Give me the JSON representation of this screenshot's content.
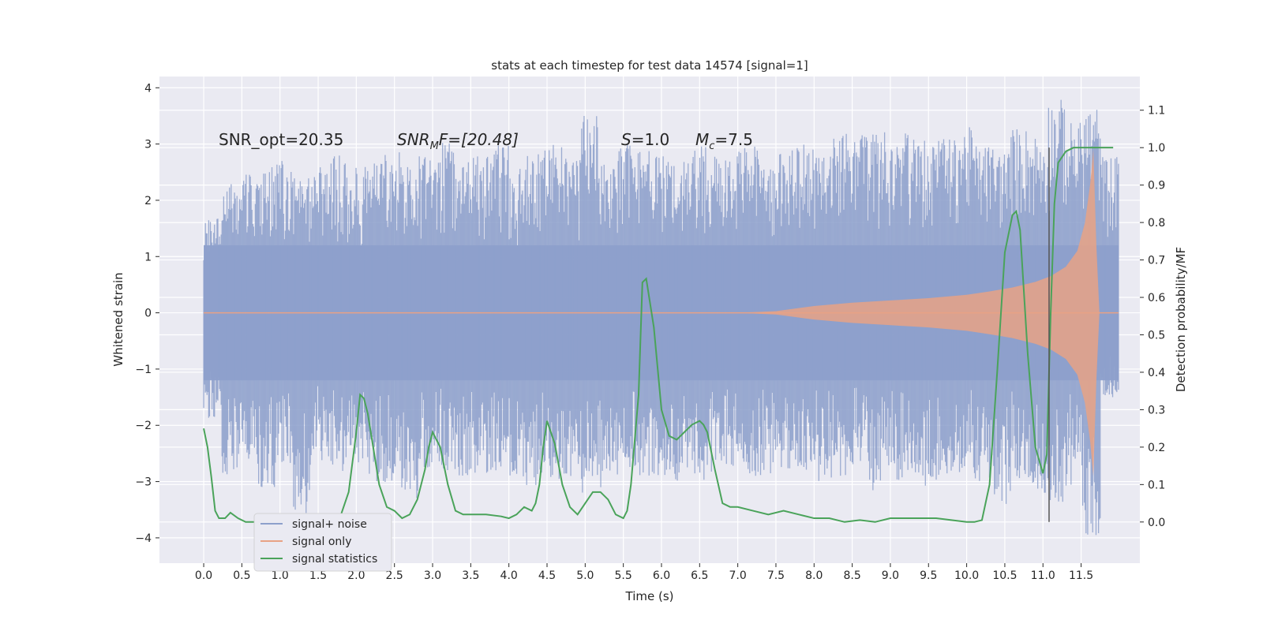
{
  "chart_data": {
    "type": "line",
    "title": "stats at each timestep for test data 14574 [signal=1]",
    "xlabel": "Time (s)",
    "ylabel": "Whitened strain",
    "y2label": "Detection probability/MF",
    "xlim": [
      -0.58,
      12.27
    ],
    "ylim": [
      -4.45,
      4.2
    ],
    "y2lim": [
      -0.11,
      1.19
    ],
    "x_ticks": [
      "0.0",
      "0.5",
      "1.0",
      "1.5",
      "2.0",
      "2.5",
      "3.0",
      "3.5",
      "4.0",
      "4.5",
      "5.0",
      "5.5",
      "6.0",
      "6.5",
      "7.0",
      "7.5",
      "8.0",
      "8.5",
      "9.0",
      "9.5",
      "10.0",
      "10.5",
      "11.0",
      "11.5"
    ],
    "y_ticks": [
      "4",
      "3",
      "2",
      "1",
      "0",
      "−1",
      "−2",
      "−3",
      "−4"
    ],
    "y2_ticks": [
      "1.1",
      "1.0",
      "0.9",
      "0.8",
      "0.7",
      "0.6",
      "0.5",
      "0.4",
      "0.3",
      "0.2",
      "0.1",
      "0.0"
    ],
    "grid": true,
    "annotations": [
      {
        "text": "SNR_opt=20.35",
        "x": 0.2,
        "y": 3.0
      },
      {
        "text": "F=[20.48]",
        "var": "SNR",
        "sub": "M",
        "x": 2.6,
        "y": 3.0
      },
      {
        "text": "=1.0",
        "var": "S",
        "x": 5.55,
        "y": 3.0
      },
      {
        "text": "=7.5",
        "var": "M",
        "sub": "c",
        "x": 6.55,
        "y": 3.0
      }
    ],
    "vline": {
      "x": 11.08,
      "ymin": 0.0,
      "ymax": 1.0
    },
    "legend": {
      "position": "lower-left",
      "entries": [
        {
          "label": "signal+ noise",
          "color": "#8da0cb"
        },
        {
          "label": "signal only",
          "color": "#e8a285"
        },
        {
          "label": "signal statistics",
          "color": "#4aa35a"
        }
      ]
    },
    "series": [
      {
        "name": "signal+ noise",
        "axis": "left",
        "color": "#8da0cb",
        "x_range": [
          0.0,
          11.99
        ],
        "description": "whitened strain noise band",
        "upper_envelope": [
          1.7,
          2.3,
          2.5,
          2.6,
          2.7,
          2.5,
          2.6,
          2.8,
          2.6,
          2.7,
          2.9,
          2.6,
          2.8,
          3.1,
          2.7,
          2.8,
          3.0,
          2.6,
          2.9,
          3.0,
          2.8,
          3.5,
          2.7,
          3.0,
          2.9,
          2.8,
          2.7,
          3.0,
          2.8,
          2.9,
          3.0,
          2.6,
          2.9,
          3.0,
          2.8,
          3.2,
          3.2,
          3.3,
          3.0,
          3.2,
          3.1,
          3.1,
          3.3,
          3.0,
          2.9,
          3.3,
          3.2,
          3.8,
          3.4,
          3.7,
          2.8
        ],
        "lower_envelope": [
          -1.9,
          -2.9,
          -2.6,
          -3.1,
          -2.7,
          -3.6,
          -2.7,
          -2.9,
          -2.7,
          -3.0,
          -3.1,
          -3.3,
          -2.8,
          -2.8,
          -2.9,
          -2.9,
          -2.8,
          -3.0,
          -3.1,
          -3.0,
          -2.9,
          -3.2,
          -3.1,
          -2.9,
          -2.9,
          -2.9,
          -3.0,
          -3.0,
          -2.9,
          -2.8,
          -3.0,
          -2.9,
          -2.8,
          -3.0,
          -3.0,
          -2.9,
          -2.7,
          -3.2,
          -3.0,
          -2.9,
          -3.1,
          -2.9,
          -2.9,
          -3.0,
          -3.5,
          -3.0,
          -3.2,
          -3.4,
          -3.1,
          -4.0,
          -1.5
        ],
        "core_band": [
          -1.2,
          1.2
        ]
      },
      {
        "name": "signal only",
        "axis": "left",
        "color": "#e8a285",
        "description": "chirp envelope amplitude",
        "x": [
          0.0,
          7.0,
          7.5,
          8.0,
          8.5,
          9.0,
          9.5,
          10.0,
          10.3,
          10.6,
          10.9,
          11.1,
          11.3,
          11.45,
          11.55,
          11.62,
          11.66,
          11.7,
          11.74,
          11.99
        ],
        "amplitude": [
          0.0,
          0.0,
          0.03,
          0.12,
          0.18,
          0.22,
          0.26,
          0.32,
          0.38,
          0.45,
          0.55,
          0.65,
          0.82,
          1.1,
          1.6,
          2.3,
          2.9,
          1.2,
          0.0,
          0.0
        ]
      },
      {
        "name": "signal statistics",
        "axis": "right",
        "color": "#4aa35a",
        "x": [
          0.0,
          0.05,
          0.1,
          0.15,
          0.2,
          0.28,
          0.35,
          0.45,
          0.55,
          0.65,
          0.8,
          1.0,
          1.2,
          1.4,
          1.5,
          1.6,
          1.8,
          1.9,
          2.0,
          2.05,
          2.1,
          2.15,
          2.3,
          2.4,
          2.5,
          2.6,
          2.7,
          2.8,
          2.9,
          2.95,
          3.0,
          3.1,
          3.2,
          3.3,
          3.4,
          3.5,
          3.7,
          3.9,
          4.0,
          4.1,
          4.2,
          4.3,
          4.35,
          4.4,
          4.45,
          4.5,
          4.6,
          4.7,
          4.8,
          4.9,
          5.0,
          5.1,
          5.2,
          5.3,
          5.4,
          5.5,
          5.55,
          5.6,
          5.7,
          5.75,
          5.8,
          5.9,
          6.0,
          6.1,
          6.2,
          6.3,
          6.4,
          6.5,
          6.55,
          6.6,
          6.7,
          6.8,
          6.9,
          7.0,
          7.2,
          7.4,
          7.6,
          7.8,
          8.0,
          8.2,
          8.4,
          8.6,
          8.8,
          9.0,
          9.2,
          9.4,
          9.6,
          9.8,
          10.0,
          10.1,
          10.2,
          10.3,
          10.4,
          10.5,
          10.6,
          10.65,
          10.7,
          10.8,
          10.9,
          11.0,
          11.05,
          11.1,
          11.15,
          11.2,
          11.3,
          11.4,
          11.6,
          11.8,
          11.92
        ],
        "values": [
          0.25,
          0.2,
          0.12,
          0.03,
          0.01,
          0.01,
          0.025,
          0.01,
          0.0,
          0.0,
          0.0,
          0.0,
          0.0,
          0.0,
          0.01,
          0.0,
          0.02,
          0.08,
          0.24,
          0.34,
          0.33,
          0.29,
          0.1,
          0.04,
          0.03,
          0.01,
          0.02,
          0.06,
          0.14,
          0.2,
          0.24,
          0.2,
          0.1,
          0.03,
          0.02,
          0.02,
          0.02,
          0.015,
          0.01,
          0.02,
          0.04,
          0.03,
          0.05,
          0.1,
          0.2,
          0.27,
          0.21,
          0.1,
          0.04,
          0.02,
          0.05,
          0.08,
          0.08,
          0.06,
          0.02,
          0.01,
          0.03,
          0.1,
          0.34,
          0.64,
          0.65,
          0.52,
          0.3,
          0.23,
          0.22,
          0.24,
          0.26,
          0.27,
          0.26,
          0.24,
          0.14,
          0.05,
          0.04,
          0.04,
          0.03,
          0.02,
          0.03,
          0.02,
          0.01,
          0.01,
          0.0,
          0.005,
          0.0,
          0.01,
          0.01,
          0.01,
          0.01,
          0.005,
          0.0,
          0.0,
          0.005,
          0.1,
          0.4,
          0.72,
          0.82,
          0.83,
          0.78,
          0.45,
          0.2,
          0.13,
          0.18,
          0.55,
          0.85,
          0.96,
          0.99,
          1.0,
          1.0,
          1.0,
          1.0
        ]
      }
    ]
  }
}
